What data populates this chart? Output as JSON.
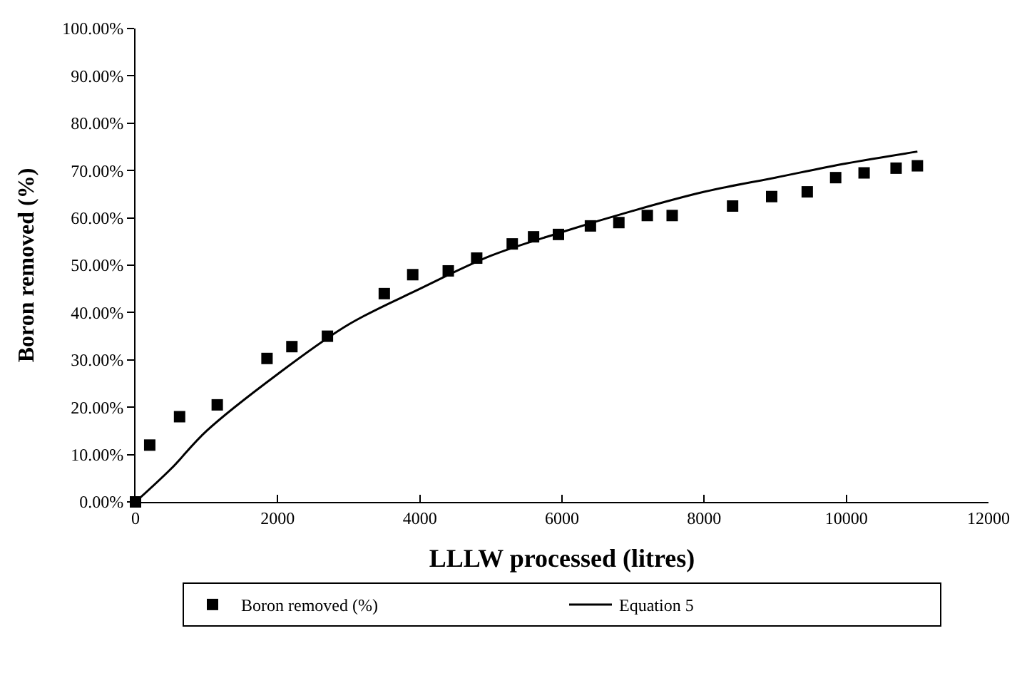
{
  "chart_data": {
    "type": "scatter",
    "xlabel": "LLLW processed (litres)",
    "ylabel": "Boron removed (%)",
    "xlim": [
      0,
      12000
    ],
    "xticks": [
      0,
      2000,
      4000,
      6000,
      8000,
      10000,
      12000
    ],
    "ylim": [
      0,
      100
    ],
    "yticks": [
      {
        "value": 0,
        "label": "0.00%"
      },
      {
        "value": 10,
        "label": "10.00%"
      },
      {
        "value": 20,
        "label": "20.00%"
      },
      {
        "value": 30,
        "label": "30.00%"
      },
      {
        "value": 40,
        "label": "40.00%"
      },
      {
        "value": 50,
        "label": "50.00%"
      },
      {
        "value": 60,
        "label": "60.00%"
      },
      {
        "value": 70,
        "label": "70.00%"
      },
      {
        "value": 80,
        "label": "80.00%"
      },
      {
        "value": 90,
        "label": "90.00%"
      },
      {
        "value": 100,
        "label": "100.00%"
      }
    ],
    "grid": false,
    "legend": "bottom",
    "series": [
      {
        "name": "Boron removed (%)",
        "marker": "square",
        "color": "#000000",
        "x": [
          0,
          200,
          620,
          1150,
          1850,
          2200,
          2700,
          3500,
          3900,
          4400,
          4800,
          5300,
          5600,
          5950,
          6400,
          6800,
          7200,
          7550,
          8400,
          8950,
          9450,
          9850,
          10250,
          10700,
          11000
        ],
        "values": [
          0,
          12,
          18,
          20.5,
          30.3,
          32.8,
          35,
          44,
          48,
          48.8,
          51.5,
          54.5,
          56,
          56.5,
          58.3,
          59,
          60.5,
          60.5,
          62.5,
          64.5,
          65.5,
          68.5,
          69.5,
          70.5,
          71
        ]
      },
      {
        "name": "Equation 5",
        "type": "line",
        "line_style": "solid",
        "color": "#000000",
        "x": [
          0,
          500,
          1000,
          2000,
          3000,
          4000,
          5000,
          6000,
          7000,
          8000,
          9000,
          10000,
          11000
        ],
        "values": [
          0,
          7,
          15,
          27,
          37.5,
          45,
          52,
          57,
          61.5,
          65.5,
          68.5,
          71.5,
          74
        ]
      }
    ]
  }
}
